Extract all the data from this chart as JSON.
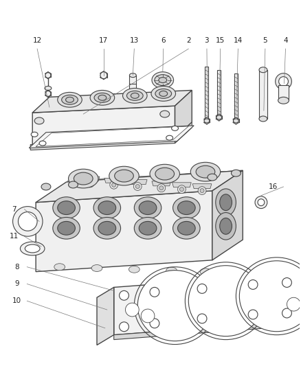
{
  "bg_color": "#ffffff",
  "line_color": "#444444",
  "label_color": "#222222",
  "fig_width": 4.39,
  "fig_height": 5.33,
  "dpi": 100,
  "label_fs": 7.5,
  "leader_lw": 0.5,
  "leader_color": "#777777"
}
